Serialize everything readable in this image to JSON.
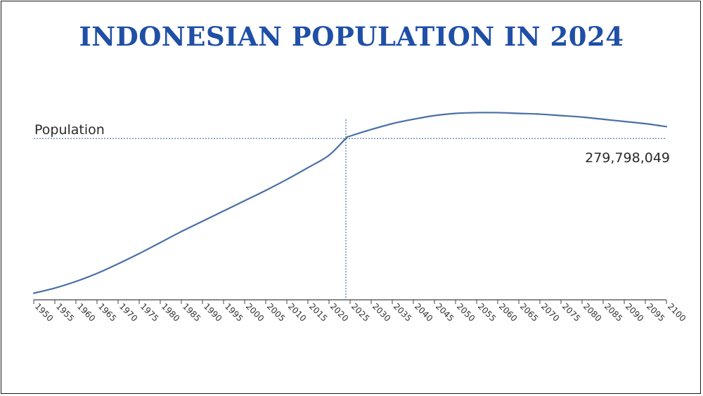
{
  "chart_data": {
    "type": "line",
    "title": "INDONESIAN POPULATION IN 2024",
    "ylabel": "Population",
    "xlabel": "",
    "highlight": {
      "year": 2024,
      "value": 279798049,
      "label": "279,798,049"
    },
    "ylim": [
      60000000,
      325000000
    ],
    "xlim": [
      1950,
      2100
    ],
    "tick_labels": [
      "1950",
      "1955",
      "1960",
      "1965",
      "1970",
      "1975",
      "1980",
      "1985",
      "1990",
      "1995",
      "2000",
      "2005",
      "2010",
      "2015",
      "2020",
      "2025",
      "2030",
      "2035",
      "2040",
      "2045",
      "2050",
      "2055",
      "2060",
      "2065",
      "2070",
      "2075",
      "2080",
      "2085",
      "2090",
      "2095",
      "2100"
    ],
    "x": [
      1950,
      1955,
      1960,
      1965,
      1970,
      1975,
      1980,
      1985,
      1990,
      1995,
      2000,
      2005,
      2010,
      2015,
      2020,
      2024,
      2025,
      2030,
      2035,
      2040,
      2045,
      2050,
      2055,
      2060,
      2065,
      2070,
      2075,
      2080,
      2085,
      2090,
      2095,
      2100
    ],
    "values": [
      69000000,
      76000000,
      85000000,
      96000000,
      109000000,
      123000000,
      138000000,
      153000000,
      167000000,
      181000000,
      195000000,
      209000000,
      224000000,
      240000000,
      257000000,
      279798049,
      283000000,
      292000000,
      300000000,
      306000000,
      311000000,
      314000000,
      315000000,
      315000000,
      314000000,
      313000000,
      311000000,
      309000000,
      306000000,
      303000000,
      300000000,
      296000000
    ],
    "line_color": "#4a6fa5",
    "guide_color": "#5a7fa8",
    "axis_color": "#444444",
    "grid": false,
    "legend": "none"
  }
}
